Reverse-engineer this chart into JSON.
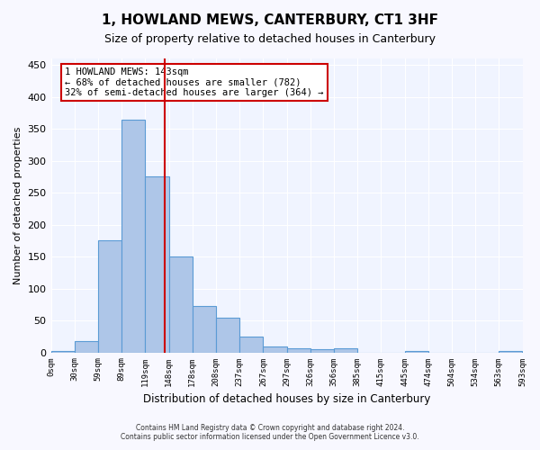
{
  "title": "1, HOWLAND MEWS, CANTERBURY, CT1 3HF",
  "subtitle": "Size of property relative to detached houses in Canterbury",
  "xlabel": "Distribution of detached houses by size in Canterbury",
  "ylabel": "Number of detached properties",
  "bin_labels": [
    "0sqm",
    "30sqm",
    "59sqm",
    "89sqm",
    "119sqm",
    "148sqm",
    "178sqm",
    "208sqm",
    "237sqm",
    "267sqm",
    "297sqm",
    "326sqm",
    "356sqm",
    "385sqm",
    "415sqm",
    "445sqm",
    "474sqm",
    "504sqm",
    "534sqm",
    "563sqm",
    "593sqm"
  ],
  "bin_values": [
    2,
    18,
    176,
    364,
    275,
    150,
    73,
    55,
    25,
    9,
    6,
    5,
    7,
    0,
    0,
    2,
    0,
    0,
    0,
    2
  ],
  "bar_color": "#aec6e8",
  "bar_edge_color": "#5b9bd5",
  "property_size": 143,
  "property_label": "1 HOWLAND MEWS: 143sqm",
  "annotation_line1": "← 68% of detached houses are smaller (782)",
  "annotation_line2": "32% of semi-detached houses are larger (364) →",
  "vline_color": "#cc0000",
  "vline_x_bin": 4.77,
  "ylim": [
    0,
    460
  ],
  "yticks": [
    0,
    50,
    100,
    150,
    200,
    250,
    300,
    350,
    400,
    450
  ],
  "background_color": "#f0f4ff",
  "grid_color": "#ffffff",
  "footer_line1": "Contains HM Land Registry data © Crown copyright and database right 2024.",
  "footer_line2": "Contains public sector information licensed under the Open Government Licence v3.0."
}
